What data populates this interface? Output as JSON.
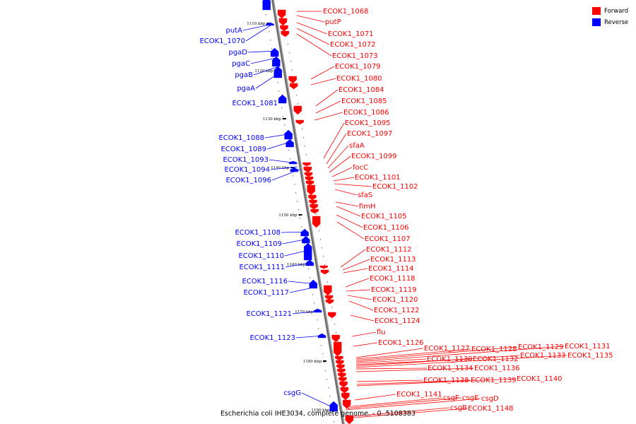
{
  "caption": "Escherichia coli IHE3034, complete genome. - 0..5108383",
  "legend": [
    {
      "label": "Forward",
      "color": "#ff0000"
    },
    {
      "label": "Reverse",
      "color": "#0000ff"
    }
  ],
  "colors": {
    "forward": "#ff0000",
    "reverse": "#0000ff",
    "backbone": "#7f7f7f"
  },
  "ticks": [
    "1110 kbp",
    "1120 kbp",
    "1130 kbp",
    "1140 kbp",
    "1150 kbp",
    "1160 kbp",
    "1170 kbp",
    "1180 kbp",
    "1190 kbp"
  ],
  "reverse_labels": [
    "putA",
    "ECOK1_1070",
    "pgaD",
    "pgaC",
    "pgaB",
    "pgaA",
    "ECOK1_1081",
    "ECOK1_1088",
    "ECOK1_1089",
    "ECOK1_1093",
    "ECOK1_1094",
    "ECOK1_1096",
    "ECOK1_1108",
    "ECOK1_1109",
    "ECOK1_1110",
    "ECOK1_1111",
    "ECOK1_1116",
    "ECOK1_1117",
    "ECOK1_1121",
    "ECOK1_1123",
    "csgG"
  ],
  "forward_labels": [
    "ECOK1_1068",
    "putP",
    "ECOK1_1071",
    "ECOK1_1072",
    "ECOK1_1073",
    "ECOK1_1079",
    "ECOK1_1080",
    "ECOK1_1084",
    "ECOK1_1085",
    "ECOK1_1086",
    "ECOK1_1095",
    "ECOK1_1097",
    "sfaA",
    "ECOK1_1099",
    "focC",
    "ECOK1_1101",
    "ECOK1_1102",
    "sfaS",
    "fimH",
    "ECOK1_1105",
    "ECOK1_1106",
    "ECOK1_1107",
    "ECOK1_1112",
    "ECOK1_1113",
    "ECOK1_1114",
    "ECOK1_1118",
    "ECOK1_1119",
    "ECOK1_1120",
    "ECOK1_1122",
    "ECOK1_1124",
    "flu",
    "ECOK1_1126",
    "ECOK1_1127",
    "ECOK1_1128",
    "ECOK1_1129",
    "ECOK1_1131",
    "ECOK1_1130",
    "ECOK1_1132",
    "ECOK1_1133",
    "ECOK1_1135",
    "ECOK1_1134",
    "ECOK1_1136",
    "ECOK1_1138",
    "ECOK1_1139",
    "ECOK1_1140",
    "ECOK1_1141",
    "csgF",
    "csgE",
    "csgD",
    "csgB",
    "ECOK1_1148"
  ]
}
